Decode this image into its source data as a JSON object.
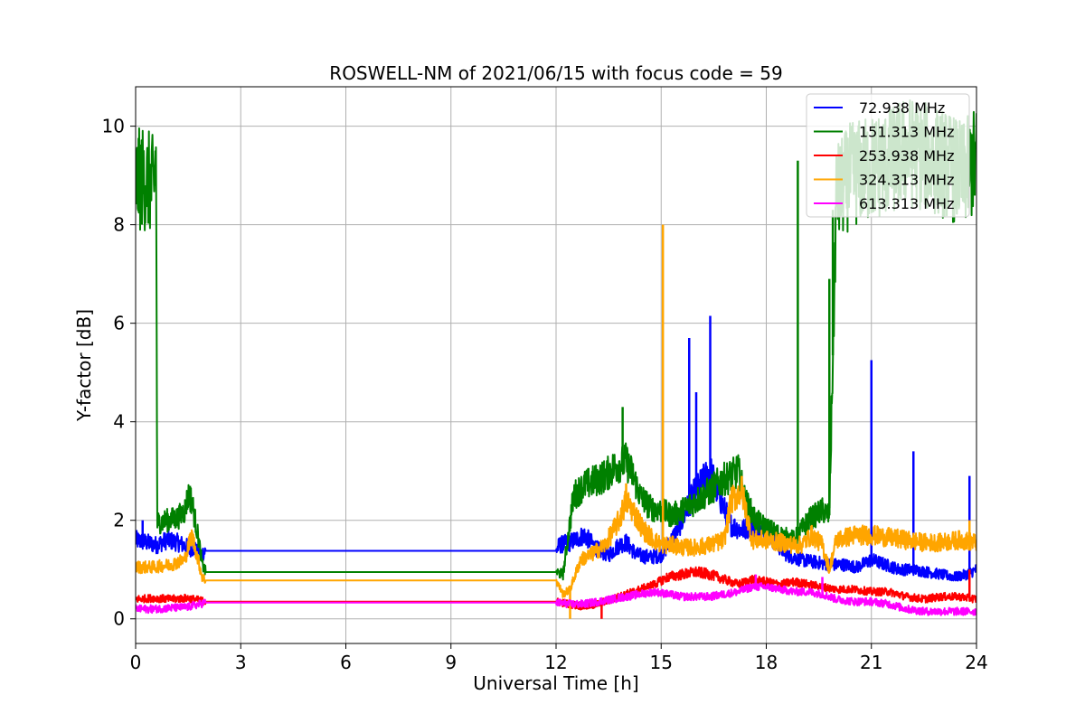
{
  "chart_data": {
    "type": "line",
    "title": "ROSWELL-NM of 2021/06/15 with focus code = 59",
    "xlabel": "Universal Time [h]",
    "ylabel": "Y-factor [dB]",
    "xlim": [
      0,
      24
    ],
    "ylim": [
      -0.5,
      10.8
    ],
    "xticks": [
      0,
      3,
      6,
      9,
      12,
      15,
      18,
      21,
      24
    ],
    "yticks": [
      0,
      2,
      4,
      6,
      8,
      10
    ],
    "grid": true,
    "legend_position": "top-right",
    "series": [
      {
        "name": "  72.938 MHz",
        "color": "#0000ff",
        "points": [
          [
            0.0,
            1.6
          ],
          [
            0.3,
            1.55
          ],
          [
            0.6,
            1.5
          ],
          [
            0.9,
            1.6
          ],
          [
            1.2,
            1.55
          ],
          [
            1.5,
            1.45
          ],
          [
            1.7,
            1.4
          ],
          [
            1.8,
            1.3
          ],
          [
            1.95,
            1.35
          ],
          [
            2.0,
            1.38
          ],
          [
            12.0,
            1.38
          ],
          [
            12.1,
            1.5
          ],
          [
            12.4,
            1.55
          ],
          [
            12.8,
            1.7
          ],
          [
            13.2,
            1.4
          ],
          [
            13.5,
            1.3
          ],
          [
            13.8,
            1.5
          ],
          [
            14.0,
            1.55
          ],
          [
            14.3,
            1.3
          ],
          [
            14.7,
            1.25
          ],
          [
            15.0,
            1.3
          ],
          [
            15.3,
            1.6
          ],
          [
            15.6,
            2.0
          ],
          [
            15.9,
            2.5
          ],
          [
            16.2,
            2.8
          ],
          [
            16.4,
            3.0
          ],
          [
            16.7,
            2.4
          ],
          [
            17.0,
            1.9
          ],
          [
            17.3,
            1.8
          ],
          [
            17.6,
            1.9
          ],
          [
            17.9,
            1.75
          ],
          [
            18.2,
            1.6
          ],
          [
            18.6,
            1.3
          ],
          [
            19.0,
            1.2
          ],
          [
            19.4,
            1.15
          ],
          [
            19.8,
            1.1
          ],
          [
            20.2,
            1.1
          ],
          [
            20.6,
            1.05
          ],
          [
            21.0,
            1.2
          ],
          [
            21.4,
            1.1
          ],
          [
            21.8,
            1.0
          ],
          [
            22.2,
            1.0
          ],
          [
            22.6,
            0.95
          ],
          [
            23.0,
            0.9
          ],
          [
            23.4,
            0.85
          ],
          [
            23.7,
            0.9
          ],
          [
            24.0,
            1.0
          ]
        ],
        "spikes": [
          [
            0.2,
            2.0
          ],
          [
            15.8,
            5.7
          ],
          [
            16.0,
            4.6
          ],
          [
            16.4,
            6.15
          ],
          [
            21.0,
            5.25
          ],
          [
            22.2,
            3.4
          ],
          [
            23.8,
            2.9
          ]
        ]
      },
      {
        "name": "151.313 MHz",
        "color": "#008000",
        "points": [
          [
            0.0,
            8.85
          ],
          [
            0.2,
            8.95
          ],
          [
            0.4,
            8.85
          ],
          [
            0.52,
            8.75
          ],
          [
            0.58,
            9.45
          ],
          [
            0.62,
            1.95
          ],
          [
            0.9,
            2.0
          ],
          [
            1.2,
            2.05
          ],
          [
            1.4,
            2.2
          ],
          [
            1.5,
            2.5
          ],
          [
            1.6,
            2.4
          ],
          [
            1.7,
            2.0
          ],
          [
            1.8,
            1.6
          ],
          [
            1.9,
            1.1
          ],
          [
            2.0,
            0.95
          ],
          [
            12.0,
            0.95
          ],
          [
            12.2,
            0.9
          ],
          [
            12.5,
            2.5
          ],
          [
            12.8,
            2.7
          ],
          [
            13.1,
            2.8
          ],
          [
            13.4,
            2.9
          ],
          [
            13.7,
            3.1
          ],
          [
            14.0,
            3.2
          ],
          [
            14.2,
            2.9
          ],
          [
            14.4,
            2.5
          ],
          [
            14.7,
            2.25
          ],
          [
            15.0,
            2.2
          ],
          [
            15.3,
            2.1
          ],
          [
            15.6,
            2.2
          ],
          [
            16.0,
            2.4
          ],
          [
            16.4,
            2.6
          ],
          [
            16.7,
            2.8
          ],
          [
            17.0,
            2.9
          ],
          [
            17.2,
            3.0
          ],
          [
            17.4,
            2.4
          ],
          [
            17.7,
            2.0
          ],
          [
            18.0,
            1.85
          ],
          [
            18.4,
            1.7
          ],
          [
            18.8,
            1.6
          ],
          [
            19.2,
            2.0
          ],
          [
            19.6,
            2.2
          ],
          [
            19.8,
            2.1
          ],
          [
            20.0,
            8.6
          ],
          [
            20.4,
            9.0
          ],
          [
            20.8,
            9.1
          ],
          [
            21.2,
            9.2
          ],
          [
            21.6,
            9.3
          ],
          [
            22.0,
            9.5
          ],
          [
            22.4,
            9.4
          ],
          [
            22.8,
            9.3
          ],
          [
            23.2,
            9.2
          ],
          [
            23.6,
            9.0
          ],
          [
            24.0,
            9.3
          ]
        ],
        "spikes": [
          [
            1.55,
            2.7
          ],
          [
            13.9,
            4.3
          ],
          [
            18.9,
            9.3
          ],
          [
            19.8,
            6.9
          ],
          [
            19.9,
            8.3
          ],
          [
            22.2,
            10.1
          ]
        ]
      },
      {
        "name": "253.938 MHz",
        "color": "#ff0000",
        "points": [
          [
            0.0,
            0.4
          ],
          [
            0.5,
            0.42
          ],
          [
            1.0,
            0.4
          ],
          [
            1.5,
            0.42
          ],
          [
            2.0,
            0.35
          ],
          [
            12.0,
            0.35
          ],
          [
            12.4,
            0.3
          ],
          [
            12.8,
            0.25
          ],
          [
            13.2,
            0.3
          ],
          [
            13.6,
            0.4
          ],
          [
            14.0,
            0.5
          ],
          [
            14.4,
            0.6
          ],
          [
            14.8,
            0.7
          ],
          [
            15.2,
            0.85
          ],
          [
            15.6,
            0.9
          ],
          [
            16.0,
            0.95
          ],
          [
            16.4,
            0.9
          ],
          [
            16.8,
            0.8
          ],
          [
            17.2,
            0.7
          ],
          [
            17.6,
            0.8
          ],
          [
            18.0,
            0.75
          ],
          [
            18.4,
            0.7
          ],
          [
            18.8,
            0.75
          ],
          [
            19.2,
            0.7
          ],
          [
            19.6,
            0.65
          ],
          [
            20.0,
            0.6
          ],
          [
            20.5,
            0.6
          ],
          [
            21.0,
            0.55
          ],
          [
            21.5,
            0.55
          ],
          [
            22.0,
            0.45
          ],
          [
            22.5,
            0.4
          ],
          [
            23.0,
            0.45
          ],
          [
            23.5,
            0.45
          ],
          [
            24.0,
            0.4
          ]
        ],
        "spikes": [
          [
            13.3,
            0.0
          ],
          [
            23.8,
            1.0
          ]
        ]
      },
      {
        "name": "324.313 MHz",
        "color": "#ffa500",
        "points": [
          [
            0.0,
            1.05
          ],
          [
            0.5,
            1.05
          ],
          [
            1.0,
            1.1
          ],
          [
            1.4,
            1.2
          ],
          [
            1.6,
            1.7
          ],
          [
            1.75,
            1.3
          ],
          [
            1.9,
            0.85
          ],
          [
            2.0,
            0.78
          ],
          [
            12.0,
            0.78
          ],
          [
            12.2,
            0.5
          ],
          [
            12.4,
            0.6
          ],
          [
            12.7,
            1.2
          ],
          [
            13.0,
            1.3
          ],
          [
            13.4,
            1.5
          ],
          [
            13.8,
            2.0
          ],
          [
            14.0,
            2.4
          ],
          [
            14.2,
            2.2
          ],
          [
            14.5,
            1.8
          ],
          [
            14.8,
            1.6
          ],
          [
            15.0,
            1.5
          ],
          [
            15.3,
            1.5
          ],
          [
            15.6,
            1.45
          ],
          [
            16.0,
            1.45
          ],
          [
            16.4,
            1.5
          ],
          [
            16.8,
            1.6
          ],
          [
            17.0,
            2.4
          ],
          [
            17.3,
            2.6
          ],
          [
            17.6,
            1.6
          ],
          [
            18.0,
            1.6
          ],
          [
            18.4,
            1.55
          ],
          [
            18.8,
            1.5
          ],
          [
            19.0,
            1.5
          ],
          [
            19.3,
            1.7
          ],
          [
            19.6,
            1.5
          ],
          [
            19.8,
            1.0
          ],
          [
            20.0,
            1.6
          ],
          [
            20.5,
            1.7
          ],
          [
            21.0,
            1.7
          ],
          [
            21.5,
            1.65
          ],
          [
            22.0,
            1.6
          ],
          [
            22.5,
            1.55
          ],
          [
            23.0,
            1.55
          ],
          [
            23.5,
            1.6
          ],
          [
            24.0,
            1.55
          ]
        ],
        "spikes": [
          [
            12.4,
            0.0
          ],
          [
            14.0,
            2.75
          ],
          [
            15.05,
            8.0
          ],
          [
            17.3,
            2.9
          ],
          [
            23.8,
            2.0
          ]
        ]
      },
      {
        "name": "613.313 MHz",
        "color": "#ff00ff",
        "points": [
          [
            0.0,
            0.2
          ],
          [
            0.5,
            0.2
          ],
          [
            1.0,
            0.22
          ],
          [
            1.5,
            0.24
          ],
          [
            2.0,
            0.33
          ],
          [
            12.0,
            0.33
          ],
          [
            12.4,
            0.3
          ],
          [
            12.8,
            0.3
          ],
          [
            13.2,
            0.35
          ],
          [
            13.6,
            0.4
          ],
          [
            14.0,
            0.45
          ],
          [
            14.4,
            0.5
          ],
          [
            14.8,
            0.55
          ],
          [
            15.2,
            0.5
          ],
          [
            15.6,
            0.45
          ],
          [
            16.0,
            0.45
          ],
          [
            16.4,
            0.45
          ],
          [
            16.8,
            0.5
          ],
          [
            17.2,
            0.55
          ],
          [
            17.6,
            0.65
          ],
          [
            18.0,
            0.65
          ],
          [
            18.4,
            0.6
          ],
          [
            18.8,
            0.55
          ],
          [
            19.2,
            0.55
          ],
          [
            19.6,
            0.5
          ],
          [
            20.0,
            0.4
          ],
          [
            20.5,
            0.35
          ],
          [
            21.0,
            0.35
          ],
          [
            21.5,
            0.3
          ],
          [
            22.0,
            0.2
          ],
          [
            22.5,
            0.15
          ],
          [
            23.0,
            0.15
          ],
          [
            23.5,
            0.15
          ],
          [
            24.0,
            0.15
          ]
        ],
        "spikes": [
          [
            17.7,
            0.9
          ],
          [
            19.6,
            0.85
          ]
        ]
      }
    ]
  }
}
